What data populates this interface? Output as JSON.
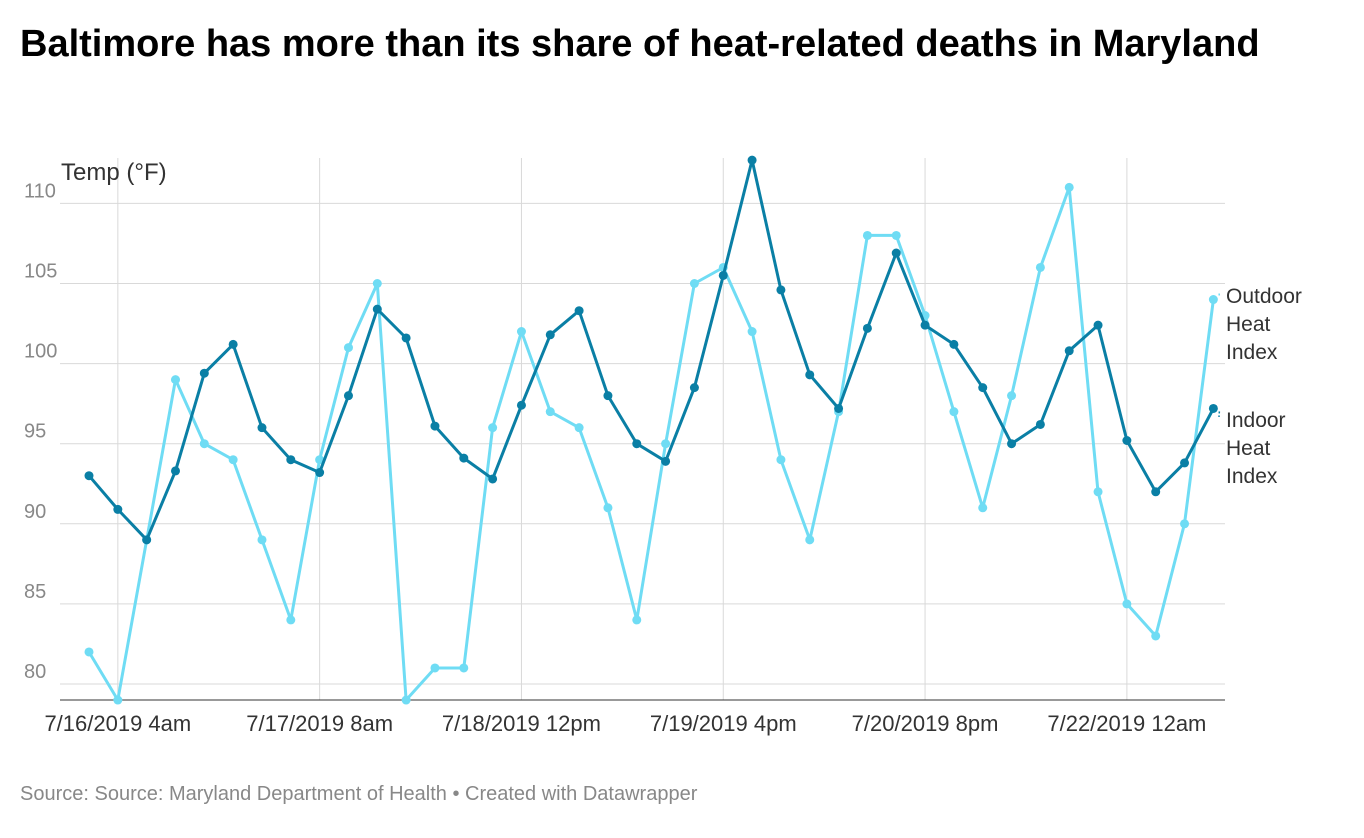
{
  "chart_data": {
    "type": "line",
    "title": "Baltimore has more than its share of heat-related deaths in Maryland",
    "ylabel": "Temp (°F)",
    "ylim": [
      79,
      113
    ],
    "yticks": [
      80,
      85,
      90,
      95,
      100,
      105,
      110
    ],
    "x_tick_labels": [
      "7/16/2019 4am",
      "7/17/2019 8am",
      "7/18/2019 12pm",
      "7/19/2019 4pm",
      "7/20/2019 8pm",
      "7/22/2019 12am"
    ],
    "x_tick_index": [
      1,
      8,
      15,
      22,
      29,
      36
    ],
    "grid": true,
    "series": [
      {
        "name": "Outdoor Heat Index",
        "legend_lines": [
          "Outdoor",
          "Heat",
          "Index"
        ],
        "color": "#6fdcf4",
        "values": [
          82,
          79,
          89,
          99,
          95,
          94,
          89,
          84,
          94,
          101,
          105,
          79,
          81,
          81,
          96,
          102,
          97,
          96,
          91,
          84,
          95,
          105,
          106,
          102,
          94,
          89,
          97,
          108,
          108,
          103,
          97,
          91,
          98,
          106,
          111,
          92,
          85,
          83,
          90,
          104
        ]
      },
      {
        "name": "Indoor Heat Index",
        "legend_lines": [
          "Indoor",
          "Heat",
          "Index"
        ],
        "color": "#0a7fa5",
        "values": [
          93,
          90.9,
          89,
          93.3,
          99.4,
          101.2,
          96,
          94,
          93.2,
          98,
          103.4,
          101.6,
          96.1,
          94.1,
          92.8,
          97.4,
          101.8,
          103.3,
          98,
          95,
          93.9,
          98.5,
          105.5,
          112.7,
          104.6,
          99.3,
          97.2,
          102.2,
          106.9,
          102.4,
          101.2,
          98.5,
          95,
          96.2,
          100.8,
          102.4,
          95.2,
          92,
          93.8,
          97.2
        ]
      }
    ]
  },
  "footer": {
    "source": "Source: Source: Maryland Department of Health",
    "separator": "•",
    "credit": "Created with Datawrapper"
  }
}
